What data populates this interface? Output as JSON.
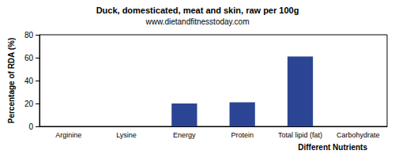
{
  "chart_data": {
    "type": "bar",
    "title": "Duck, domesticated, meat and skin, raw per 100g",
    "subtitle": "www.dietandfitnesstoday.com",
    "xlabel": "Different Nutrients",
    "ylabel": "Percentage of RDA (%)",
    "categories": [
      "Arginine",
      "Lysine",
      "Energy",
      "Protein",
      "Total lipid (fat)",
      "Carbohydrate"
    ],
    "values": [
      0,
      0,
      20,
      21,
      61,
      0
    ],
    "color": "#2b4594",
    "ylim": [
      0,
      80
    ],
    "yticks": [
      0,
      20,
      40,
      60,
      80
    ],
    "grid": false
  }
}
